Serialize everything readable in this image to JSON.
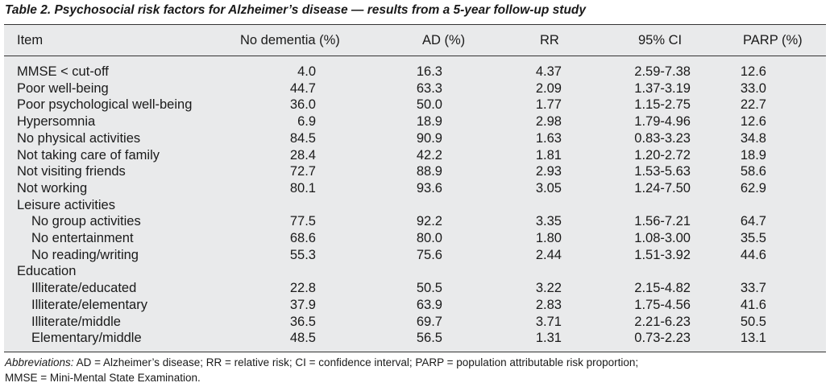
{
  "caption": "Table 2. Psychosocial risk factors for Alzheimer’s disease — results from a 5-year follow-up study",
  "headers": {
    "item": "Item",
    "no_dementia": "No dementia (%)",
    "ad": "AD (%)",
    "rr": "RR",
    "ci": "95% CI",
    "parp": "PARP (%)"
  },
  "rows": [
    {
      "item": "MMSE < cut-off",
      "no_dementia": "4.0",
      "ad": "16.3",
      "rr": "4.37",
      "ci": "2.59-7.38",
      "parp": "12.6"
    },
    {
      "item": "Poor well-being",
      "no_dementia": "44.7",
      "ad": "63.3",
      "rr": "2.09",
      "ci": "1.37-3.19",
      "parp": "33.0"
    },
    {
      "item": "Poor psychological well-being",
      "no_dementia": "36.0",
      "ad": "50.0",
      "rr": "1.77",
      "ci": "1.15-2.75",
      "parp": "22.7"
    },
    {
      "item": "Hypersomnia",
      "no_dementia": "6.9",
      "ad": "18.9",
      "rr": "2.98",
      "ci": "1.79-4.96",
      "parp": "12.6"
    },
    {
      "item": "No physical activities",
      "no_dementia": "84.5",
      "ad": "90.9",
      "rr": "1.63",
      "ci": "0.83-3.23",
      "parp": "34.8"
    },
    {
      "item": "Not taking care of family",
      "no_dementia": "28.4",
      "ad": "42.2",
      "rr": "1.81",
      "ci": "1.20-2.72",
      "parp": "18.9"
    },
    {
      "item": "Not visiting friends",
      "no_dementia": "72.7",
      "ad": "88.9",
      "rr": "2.93",
      "ci": "1.53-5.63",
      "parp": "58.6"
    },
    {
      "item": "Not working",
      "no_dementia": "80.1",
      "ad": "93.6",
      "rr": "3.05",
      "ci": "1.24-7.50",
      "parp": "62.9"
    },
    {
      "item": "Leisure activities",
      "group": true
    },
    {
      "item": "No group activities",
      "indent": true,
      "no_dementia": "77.5",
      "ad": "92.2",
      "rr": "3.35",
      "ci": "1.56-7.21",
      "parp": "64.7"
    },
    {
      "item": "No entertainment",
      "indent": true,
      "no_dementia": "68.6",
      "ad": "80.0",
      "rr": "1.80",
      "ci": "1.08-3.00",
      "parp": "35.5"
    },
    {
      "item": "No reading/writing",
      "indent": true,
      "no_dementia": "55.3",
      "ad": "75.6",
      "rr": "2.44",
      "ci": "1.51-3.92",
      "parp": "44.6"
    },
    {
      "item": "Education",
      "group": true
    },
    {
      "item": "Illiterate/educated",
      "indent": true,
      "no_dementia": "22.8",
      "ad": "50.5",
      "rr": "3.22",
      "ci": "2.15-4.82",
      "parp": "33.7"
    },
    {
      "item": "Illiterate/elementary",
      "indent": true,
      "no_dementia": "37.9",
      "ad": "63.9",
      "rr": "2.83",
      "ci": "1.75-4.56",
      "parp": "41.6"
    },
    {
      "item": "Illiterate/middle",
      "indent": true,
      "no_dementia": "36.5",
      "ad": "69.7",
      "rr": "3.71",
      "ci": "2.21-6.23",
      "parp": "50.5"
    },
    {
      "item": "Elementary/middle",
      "indent": true,
      "no_dementia": "48.5",
      "ad": "56.5",
      "rr": "1.31",
      "ci": "0.73-2.23",
      "parp": "13.1"
    }
  ],
  "footnote": {
    "label": "Abbreviations:",
    "text_line1": " AD = Alzheimer’s disease; RR = relative risk; CI = confidence interval; PARP = population attributable risk proportion;",
    "text_line2": "MMSE = Mini-Mental State Examination."
  },
  "colors": {
    "table_background": "#e9eaeb",
    "rule": "#333333",
    "text": "#1a1a1a"
  }
}
